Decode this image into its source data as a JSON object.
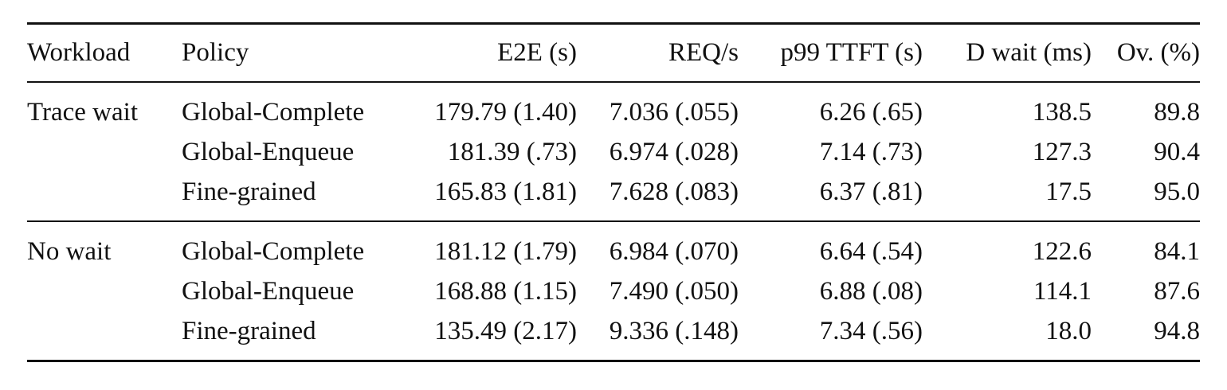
{
  "table": {
    "columns": [
      "Workload",
      "Policy",
      "E2E (s)",
      "REQ/s",
      "p99 TTFT (s)",
      "D wait (ms)",
      "Ov. (%)"
    ],
    "groups": [
      {
        "workload": "Trace wait",
        "rows": [
          [
            "Global-Complete",
            "179.79 (1.40)",
            "7.036 (.055)",
            "6.26 (.65)",
            "138.5",
            "89.8"
          ],
          [
            "Global-Enqueue",
            "181.39 (.73)",
            "6.974 (.028)",
            "7.14 (.73)",
            "127.3",
            "90.4"
          ],
          [
            "Fine-grained",
            "165.83 (1.81)",
            "7.628 (.083)",
            "6.37 (.81)",
            "17.5",
            "95.0"
          ]
        ]
      },
      {
        "workload": "No wait",
        "rows": [
          [
            "Global-Complete",
            "181.12 (1.79)",
            "6.984 (.070)",
            "6.64 (.54)",
            "122.6",
            "84.1"
          ],
          [
            "Global-Enqueue",
            "168.88 (1.15)",
            "7.490 (.050)",
            "6.88 (.08)",
            "114.1",
            "87.6"
          ],
          [
            "Fine-grained",
            "135.49 (2.17)",
            "9.336 (.148)",
            "7.34 (.56)",
            "18.0",
            "94.8"
          ]
        ]
      }
    ]
  }
}
